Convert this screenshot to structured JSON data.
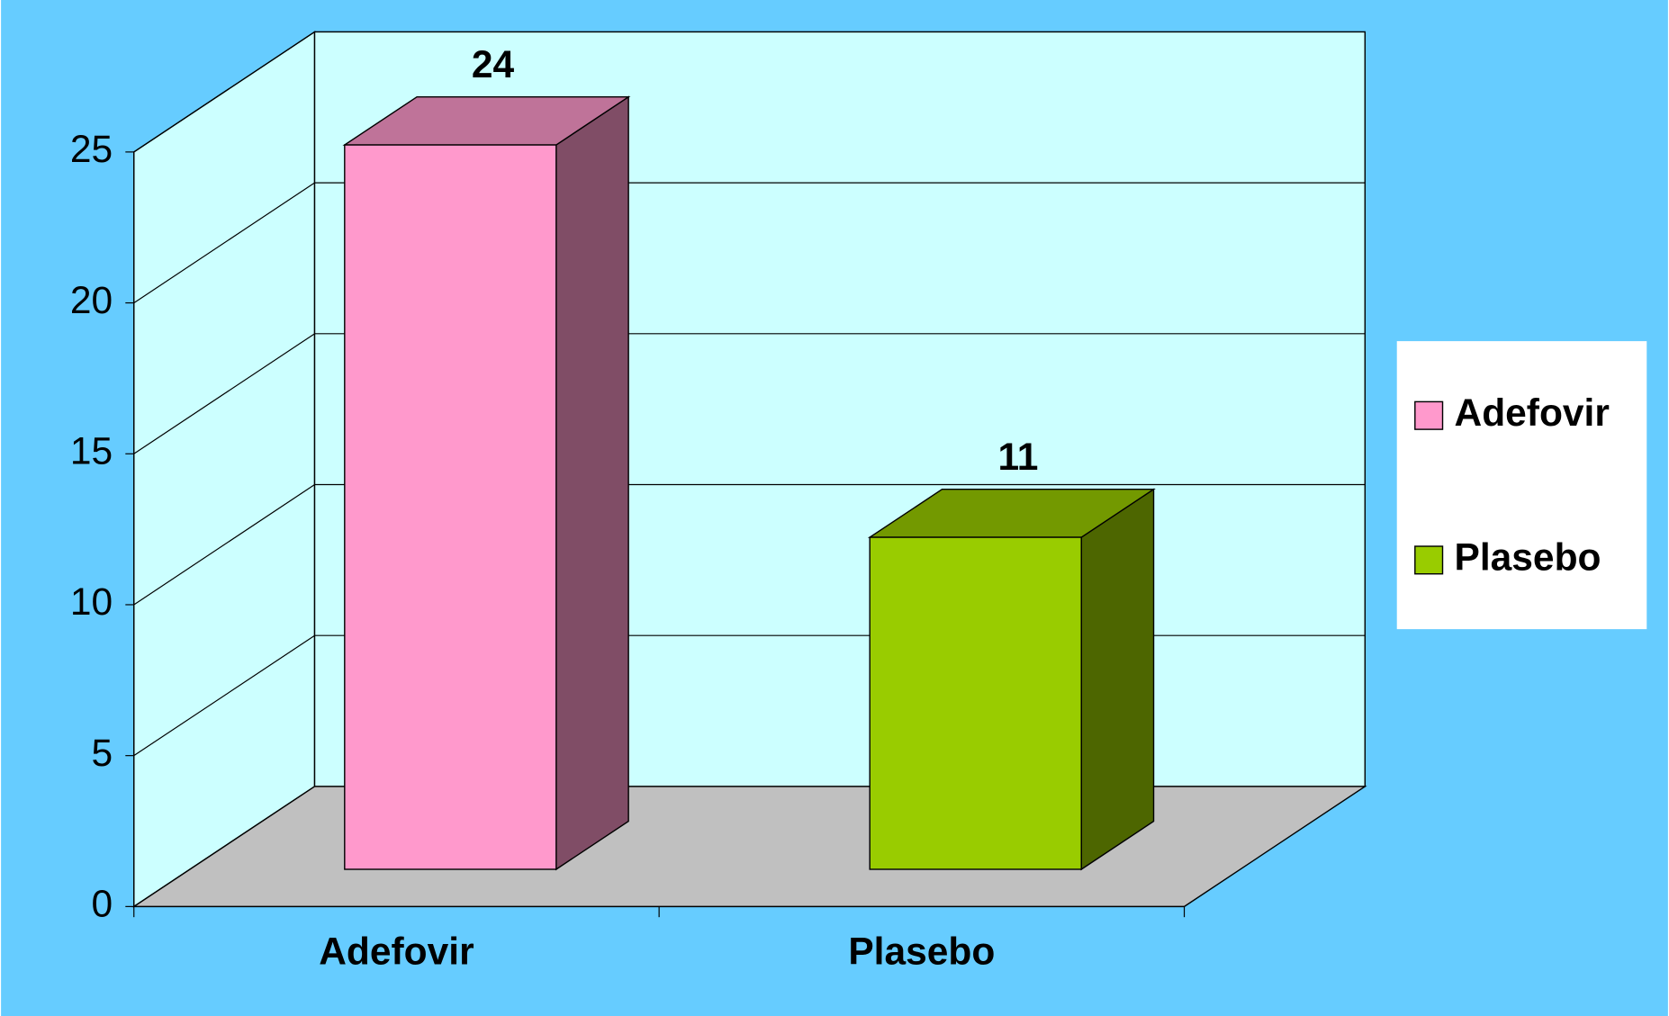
{
  "chart_data": {
    "type": "bar3d",
    "categories": [
      "Adefovir",
      "Plasebo"
    ],
    "series": [
      {
        "name": "Adefovir",
        "color": "#ff99cc",
        "values": [
          24,
          null
        ]
      },
      {
        "name": "Plasebo",
        "color": "#99cc00",
        "values": [
          null,
          11
        ]
      }
    ],
    "ylim": [
      0,
      25
    ],
    "yticks": [
      0,
      5,
      10,
      15,
      20,
      25
    ],
    "grid": true,
    "legend": "right"
  }
}
